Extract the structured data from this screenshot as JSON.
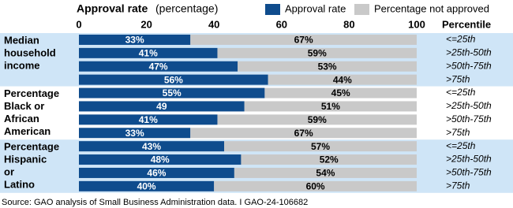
{
  "chart_data": {
    "type": "stacked_bar_horizontal",
    "xlabel": "Approval rate",
    "xlabel_unit": "(percentage)",
    "xlim": [
      0,
      100
    ],
    "xticks": [
      0,
      20,
      40,
      60,
      80,
      100
    ],
    "percentile_header": "Percentile",
    "groups": [
      {
        "label": [
          "Median",
          "household",
          "income"
        ],
        "categories": [
          "<=25th",
          ">25th-50th",
          ">50th-75th",
          ">75th"
        ],
        "background": "#cfe5f7"
      },
      {
        "label": [
          "Percentage",
          "Black or",
          "African",
          "American"
        ],
        "categories": [
          "<=25th",
          ">25th-50th",
          ">50th-75th",
          ">75th"
        ],
        "background": "#ffffff"
      },
      {
        "label": [
          "Percentage",
          "Hispanic",
          "or",
          "Latino"
        ],
        "categories": [
          "<=25th",
          ">25th-50th",
          ">50th-75th",
          ">75th"
        ],
        "background": "#cfe5f7"
      }
    ],
    "series": [
      {
        "name": "Approval rate",
        "color": "#0f4c8d",
        "label_color": "#ffffff",
        "values": [
          33,
          41,
          47,
          56,
          55,
          49,
          41,
          33,
          43,
          48,
          46,
          40
        ],
        "value_labels": [
          "33%",
          "41%",
          "47%",
          "56%",
          "55%",
          "49",
          "41%",
          "33%",
          "43%",
          "48%",
          "46%",
          "40%"
        ]
      },
      {
        "name": "Percentage not approved",
        "color": "#c9c9c9",
        "label_color": "#000000",
        "values": [
          67,
          59,
          53,
          44,
          45,
          51,
          59,
          67,
          57,
          52,
          54,
          60
        ],
        "value_labels": [
          "67%",
          "59%",
          "53%",
          "44%",
          "45%",
          "51%",
          "59%",
          "67%",
          "57%",
          "52%",
          "54%",
          "60%"
        ]
      }
    ],
    "source": "Source: GAO analysis of Small Business Administration data.  I  GAO-24-106682"
  }
}
